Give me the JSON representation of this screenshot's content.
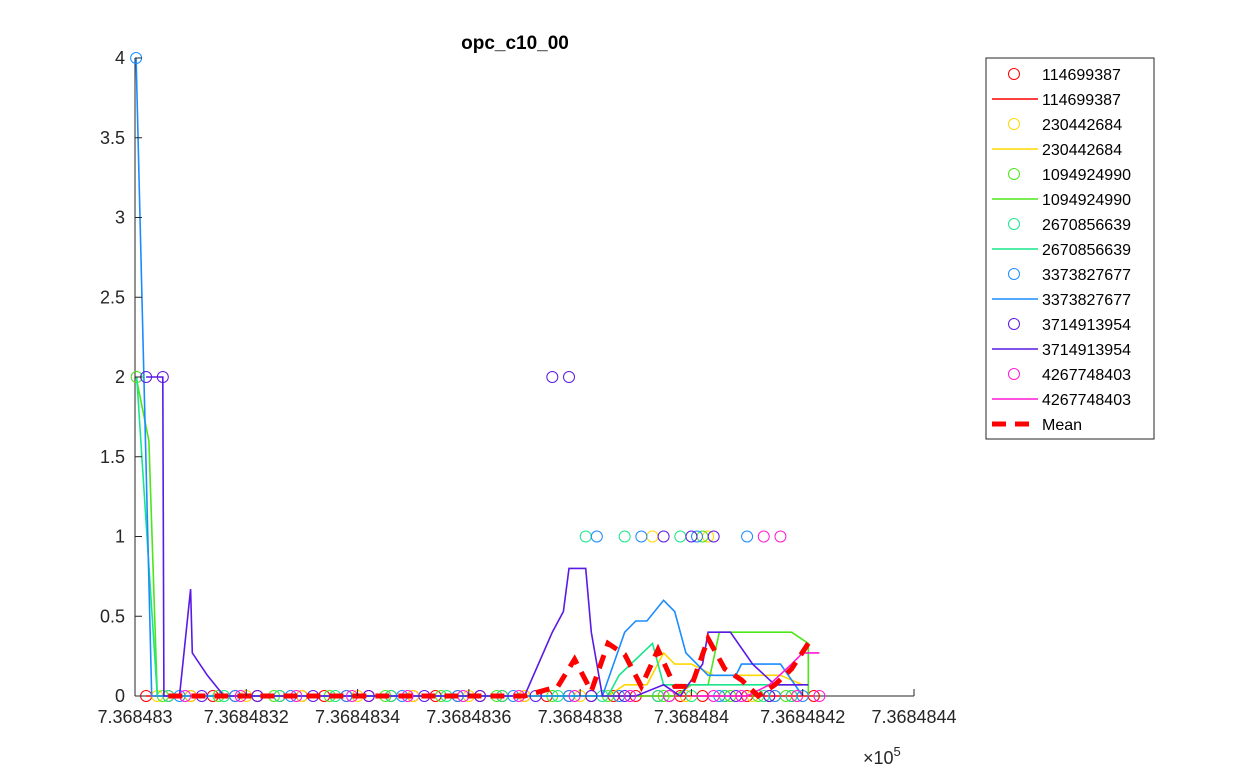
{
  "chart_data": {
    "type": "line",
    "title": "opc_c10_00",
    "xlabel": "",
    "ylabel": "",
    "x_exponent_label": "×10",
    "x_exponent_power": "5",
    "xlim": [
      736848.3,
      736848.44
    ],
    "ylim": [
      0,
      4
    ],
    "x_ticks": [
      736848.3,
      736848.32,
      736848.34,
      736848.36,
      736848.38,
      736848.4,
      736848.42,
      736848.44
    ],
    "x_tick_labels": [
      "7.368483",
      "7.3684832",
      "7.3684834",
      "7.3684836",
      "7.3684838",
      "7.368484",
      "7.3684842",
      "7.3684844"
    ],
    "y_ticks": [
      0,
      0.5,
      1,
      1.5,
      2,
      2.5,
      3,
      3.5,
      4
    ],
    "y_tick_labels": [
      "0",
      "0.5",
      "1",
      "1.5",
      "2",
      "2.5",
      "3",
      "3.5",
      "4"
    ],
    "grid": false,
    "legend_position": "outside-top-right",
    "legend_labels": [
      "114699387",
      "114699387",
      "230442684",
      "230442684",
      "1094924990",
      "1094924990",
      "2670856639",
      "2670856639",
      "3373827677",
      "3373827677",
      "3714913954",
      "3714913954",
      "4267748403",
      "4267748403",
      "Mean"
    ],
    "legend_kinds": [
      "marker",
      "line",
      "marker",
      "line",
      "marker",
      "line",
      "marker",
      "line",
      "marker",
      "line",
      "marker",
      "line",
      "marker",
      "line",
      "dash"
    ],
    "legend_colors": [
      "#ff0000",
      "#ff0000",
      "#ffd700",
      "#ffd700",
      "#4ce619",
      "#4ce619",
      "#19e68c",
      "#19e68c",
      "#1a8cff",
      "#1a8cff",
      "#5a19e6",
      "#5a19e6",
      "#ff19d4",
      "#ff19d4",
      "#ff0000"
    ],
    "series": [
      {
        "name": "114699387",
        "color": "#ff0000",
        "x": [
          736848.302,
          736848.306,
          736848.31,
          736848.314,
          736848.318,
          736848.322,
          736848.326,
          736848.33,
          736848.334,
          736848.338,
          736848.342,
          736848.346,
          736848.35,
          736848.354,
          736848.358,
          736848.362,
          736848.366,
          736848.37,
          736848.374,
          736848.378,
          736848.382,
          736848.386,
          736848.39,
          736848.394,
          736848.398,
          736848.402,
          736848.406,
          736848.41,
          736848.414,
          736848.418,
          736848.422
        ],
        "y": [
          0,
          0,
          0,
          0,
          0,
          0,
          0,
          0,
          0,
          0,
          0,
          0,
          0,
          0,
          0,
          0,
          0,
          0,
          0,
          0,
          0,
          0,
          0,
          0,
          0,
          0,
          0,
          0,
          0,
          0,
          0
        ],
        "markers_x": [
          736848.302,
          736848.306,
          736848.31,
          736848.314,
          736848.318,
          736848.322,
          736848.326,
          736848.33,
          736848.334,
          736848.338,
          736848.342,
          736848.346,
          736848.35,
          736848.354,
          736848.358,
          736848.362,
          736848.366,
          736848.37,
          736848.374,
          736848.378,
          736848.382,
          736848.386,
          736848.39,
          736848.394,
          736848.398,
          736848.402,
          736848.406,
          736848.41,
          736848.414,
          736848.418,
          736848.422
        ],
        "markers_y": [
          0,
          0,
          0,
          0,
          0,
          0,
          0,
          0,
          0,
          0,
          0,
          0,
          0,
          0,
          0,
          0,
          0,
          0,
          0,
          0,
          0,
          0,
          0,
          0,
          0,
          0,
          0,
          0,
          0,
          0,
          0
        ]
      },
      {
        "name": "230442684",
        "color": "#ffd700",
        "x": [
          736848.304,
          736848.32,
          736848.34,
          736848.36,
          736848.38,
          736848.385,
          736848.388,
          736848.392,
          736848.395,
          736848.397,
          736848.4,
          736848.404,
          736848.408,
          736848.412,
          736848.416,
          736848.42
        ],
        "y": [
          0,
          0,
          0,
          0,
          0,
          0,
          0.07,
          0.07,
          0.27,
          0.2,
          0.2,
          0.13,
          0.13,
          0.13,
          0.13,
          0.07
        ],
        "markers_x": [
          736848.304,
          736848.31,
          736848.32,
          736848.33,
          736848.34,
          736848.35,
          736848.36,
          736848.37,
          736848.38,
          736848.387,
          736848.393,
          736848.396,
          736848.399,
          736848.403,
          736848.407,
          736848.411,
          736848.415,
          736848.419
        ],
        "markers_y": [
          0,
          0,
          0,
          0,
          0,
          0,
          0,
          0,
          0,
          0,
          1,
          0,
          0,
          1,
          0,
          0,
          0,
          0
        ]
      },
      {
        "name": "1094924990",
        "color": "#4ce619",
        "x": [
          736848.3002,
          736848.3025,
          736848.304,
          736848.38,
          736848.39,
          736848.397,
          736848.4,
          736848.403,
          736848.405,
          736848.418,
          736848.421,
          736848.421
        ],
        "y": [
          2,
          1.6,
          0,
          0,
          0,
          0,
          0.07,
          0.07,
          0.4,
          0.4,
          0.33,
          0
        ],
        "markers_x": [
          736848.3003,
          736848.305,
          736848.315,
          736848.325,
          736848.335,
          736848.345,
          736848.355,
          736848.365,
          736848.375,
          736848.385,
          736848.395,
          736848.402,
          736848.407,
          736848.412,
          736848.417
        ],
        "markers_y": [
          2,
          0,
          0,
          0,
          0,
          0,
          0,
          0,
          0,
          0,
          0,
          1,
          0,
          0,
          0
        ]
      },
      {
        "name": "2670856639",
        "color": "#19e68c",
        "x": [
          736848.3003,
          736848.304,
          736848.38,
          736848.385,
          736848.387,
          736848.393,
          736848.395,
          736848.399,
          736848.402,
          736848.406,
          736848.41,
          736848.414,
          736848.418,
          736848.42
        ],
        "y": [
          2,
          0,
          0,
          0,
          0.13,
          0.33,
          0.07,
          0.07,
          0.07,
          0.07,
          0.07,
          0.07,
          0.07,
          0.07
        ],
        "markers_x": [
          736848.306,
          736848.316,
          736848.326,
          736848.336,
          736848.346,
          736848.356,
          736848.366,
          736848.376,
          736848.381,
          736848.384,
          736848.388,
          736848.394,
          736848.398,
          736848.4,
          736848.406,
          736848.413,
          736848.418
        ],
        "markers_y": [
          0,
          0,
          0,
          0,
          0,
          0,
          0,
          0,
          1,
          0,
          1,
          0,
          1,
          0,
          0,
          0,
          0
        ]
      },
      {
        "name": "3373827677",
        "color": "#1a8cff",
        "x": [
          736848.3002,
          736848.303,
          736848.38,
          736848.384,
          736848.388,
          736848.39,
          736848.392,
          736848.395,
          736848.397,
          736848.399,
          736848.403,
          736848.408,
          736848.409,
          736848.416,
          736848.42
        ],
        "y": [
          4,
          0,
          0,
          0,
          0.4,
          0.47,
          0.47,
          0.6,
          0.53,
          0.27,
          0.13,
          0.13,
          0.2,
          0.2,
          0
        ],
        "markers_x": [
          736848.3002,
          736848.308,
          736848.318,
          736848.328,
          736848.338,
          736848.348,
          736848.358,
          736848.368,
          736848.378,
          736848.383,
          736848.387,
          736848.391,
          736848.396,
          736848.401,
          736848.405,
          736848.41,
          736848.415,
          736848.42
        ],
        "markers_y": [
          4,
          0,
          0,
          0,
          0,
          0,
          0,
          0,
          0,
          1,
          0,
          1,
          0,
          1,
          0,
          1,
          0,
          0
        ]
      },
      {
        "name": "3714913954",
        "color": "#5a19e6",
        "x": [
          736848.302,
          736848.305,
          736848.3052,
          736848.308,
          736848.31,
          736848.3103,
          736848.313,
          736848.316,
          736848.37,
          736848.375,
          736848.377,
          736848.378,
          736848.381,
          736848.382,
          736848.384,
          736848.39,
          736848.395,
          736848.398,
          736848.402,
          736848.403,
          736848.407,
          736848.411,
          736848.415,
          736848.419,
          736848.421
        ],
        "y": [
          2,
          2,
          0,
          0,
          0.67,
          0.27,
          0.13,
          0,
          0,
          0.4,
          0.53,
          0.8,
          0.8,
          0.4,
          0,
          0,
          0.07,
          0,
          0.2,
          0.4,
          0.4,
          0.2,
          0.07,
          0.07,
          0.07
        ],
        "markers_x": [
          736848.302,
          736848.305,
          736848.312,
          736848.322,
          736848.332,
          736848.342,
          736848.352,
          736848.362,
          736848.372,
          736848.375,
          736848.378,
          736848.382,
          736848.388,
          736848.395,
          736848.4,
          736848.404,
          736848.408,
          736848.414
        ],
        "markers_y": [
          2,
          2,
          0,
          0,
          0,
          0,
          0,
          0,
          0,
          2,
          2,
          0,
          0,
          1,
          1,
          1,
          0,
          0
        ]
      },
      {
        "name": "4267748403",
        "color": "#ff19d4",
        "x": [
          736848.4,
          736848.41,
          736848.414,
          736848.418,
          736848.42,
          736848.423
        ],
        "y": [
          0,
          0,
          0.07,
          0.2,
          0.27,
          0.27
        ],
        "markers_x": [
          736848.309,
          736848.319,
          736848.329,
          736848.339,
          736848.349,
          736848.359,
          736848.369,
          736848.379,
          736848.389,
          736848.396,
          736848.404,
          736848.409,
          736848.413,
          736848.416,
          736848.419,
          736848.423
        ],
        "markers_y": [
          0,
          0,
          0,
          0,
          0,
          0,
          0,
          0,
          0,
          0,
          0,
          0,
          1,
          1,
          0,
          0
        ]
      },
      {
        "name": "Mean",
        "color": "#ff0000",
        "dashed": true,
        "x": [
          736848.306,
          736848.314,
          736848.35,
          736848.37,
          736848.376,
          736848.379,
          736848.382,
          736848.385,
          736848.388,
          736848.391,
          736848.394,
          736848.397,
          736848.4,
          736848.403,
          736848.406,
          736848.409,
          736848.412,
          736848.415,
          736848.418,
          736848.421
        ],
        "y": [
          0,
          0,
          0,
          0,
          0.06,
          0.23,
          0.03,
          0.33,
          0.26,
          0.06,
          0.29,
          0.06,
          0.06,
          0.36,
          0.17,
          0.1,
          0,
          0.07,
          0.17,
          0.33
        ]
      }
    ]
  }
}
